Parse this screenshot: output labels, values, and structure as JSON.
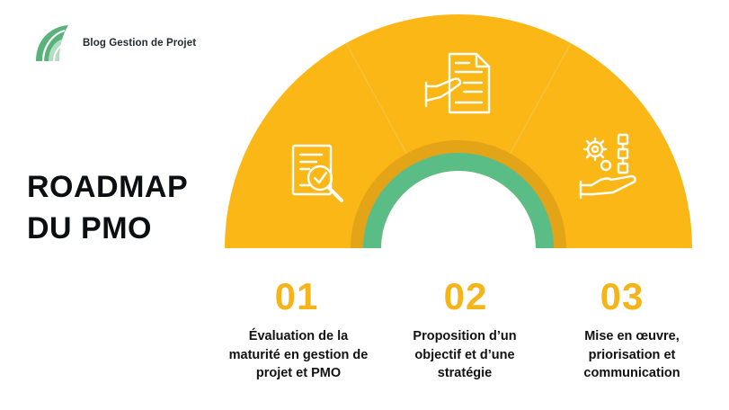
{
  "brand": {
    "name": "Blog Gestion de Projet",
    "logo_icon": "leaf-arc-logo-icon",
    "color": "#59b27a"
  },
  "title": {
    "line1": "ROADMAP",
    "line2": "DU PMO"
  },
  "colors": {
    "segment": "#fbb715",
    "inner_ring": "#e3a417",
    "green_ring": "#5bbd86"
  },
  "steps": [
    {
      "number": "01",
      "text": "Évaluation de la maturité en gestion de projet et PMO",
      "icon": "document-magnifier-check-icon"
    },
    {
      "number": "02",
      "text": "Proposition d’un objectif et d’une stratégie",
      "icon": "hand-giving-document-icon"
    },
    {
      "number": "03",
      "text": "Mise en œuvre, priorisation et communication",
      "icon": "gears-hand-workflow-icon"
    }
  ]
}
